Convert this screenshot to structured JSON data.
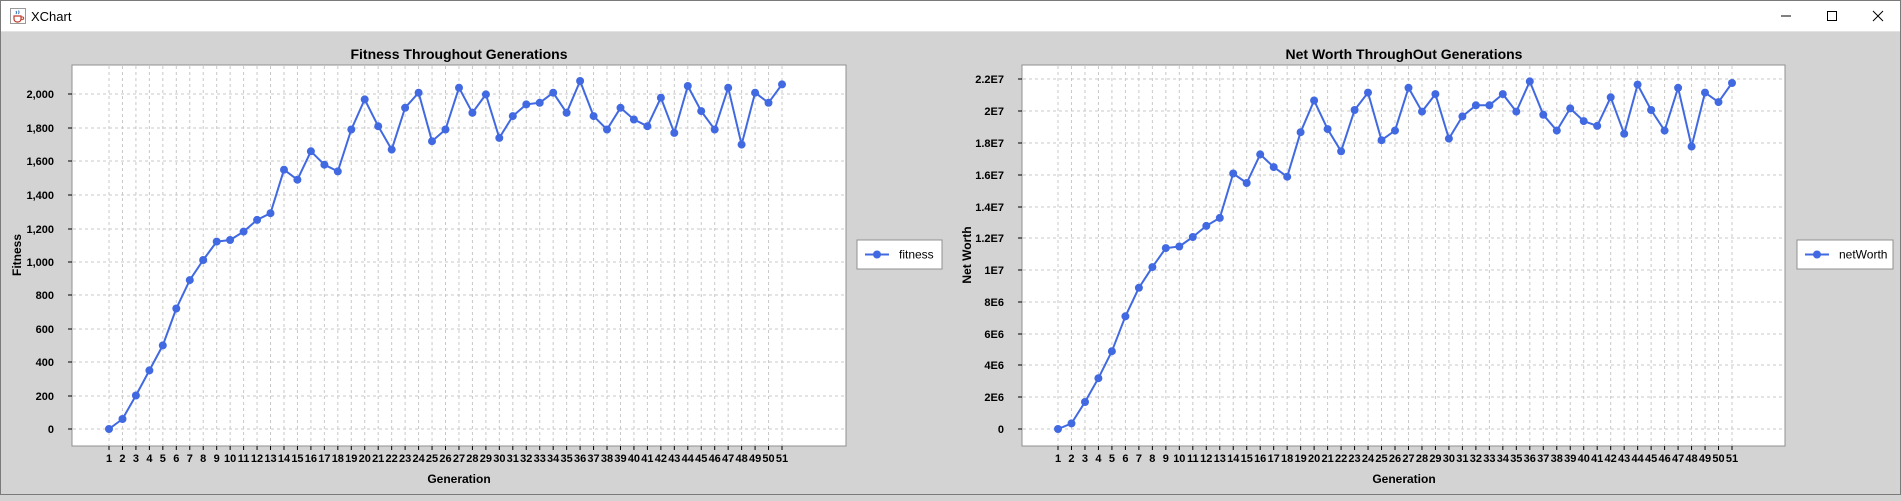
{
  "window": {
    "title": "XChart",
    "app_icon": "java-cup-icon",
    "controls": [
      "minimize-icon",
      "maximize-icon",
      "close-icon"
    ]
  },
  "colors": {
    "series": "#4169e1",
    "plot_background": "#ffffff",
    "chart_background": "#d3d3d3",
    "grid": "#c8c8c8"
  },
  "chart_data": [
    {
      "type": "line",
      "title": "Fitness Throughout Generations",
      "xlabel": "Generation",
      "ylabel": "Fitness",
      "categories": [
        "1",
        "2",
        "3",
        "4",
        "5",
        "6",
        "7",
        "8",
        "9",
        "10",
        "11",
        "12",
        "13",
        "14",
        "15",
        "16",
        "17",
        "18",
        "19",
        "20",
        "21",
        "22",
        "23",
        "24",
        "25",
        "26",
        "27",
        "28",
        "29",
        "30",
        "31",
        "32",
        "33",
        "34",
        "35",
        "36",
        "37",
        "38",
        "39",
        "40",
        "41",
        "42",
        "43",
        "44",
        "45",
        "46",
        "47",
        "48",
        "49",
        "50",
        "51"
      ],
      "y_ticks": [
        "0",
        "200",
        "400",
        "600",
        "800",
        "1,000",
        "1,200",
        "1,400",
        "1,600",
        "1,800",
        "2,000"
      ],
      "ylim": [
        -80,
        2170
      ],
      "grid": true,
      "legend": "right",
      "series": [
        {
          "name": "fitness",
          "values": [
            0,
            60,
            200,
            350,
            500,
            720,
            890,
            1010,
            1120,
            1130,
            1180,
            1250,
            1290,
            1550,
            1490,
            1660,
            1580,
            1540,
            1790,
            1970,
            1810,
            1670,
            1920,
            2010,
            1720,
            1790,
            2040,
            1890,
            2000,
            1740,
            1870,
            1940,
            1950,
            2010,
            1890,
            2080,
            1870,
            1790,
            1920,
            1850,
            1810,
            1980,
            1770,
            2050,
            1900,
            1790,
            2040,
            1700,
            2010,
            1950,
            2060
          ]
        }
      ]
    },
    {
      "type": "line",
      "title": "Net Worth ThroughOut Generations",
      "xlabel": "Generation",
      "ylabel": "Net Worth",
      "categories": [
        "1",
        "2",
        "3",
        "4",
        "5",
        "6",
        "7",
        "8",
        "9",
        "10",
        "11",
        "12",
        "13",
        "14",
        "15",
        "16",
        "17",
        "18",
        "19",
        "20",
        "21",
        "22",
        "23",
        "24",
        "25",
        "26",
        "27",
        "28",
        "29",
        "30",
        "31",
        "32",
        "33",
        "34",
        "35",
        "36",
        "37",
        "38",
        "39",
        "40",
        "41",
        "42",
        "43",
        "44",
        "45",
        "46",
        "47",
        "48",
        "49",
        "50",
        "51"
      ],
      "y_ticks": [
        "0",
        "2E6",
        "4E6",
        "6E6",
        "8E6",
        "1E7",
        "1.2E7",
        "1.4E7",
        "1.6E7",
        "1.8E7",
        "2E7",
        "2.2E7"
      ],
      "ylim": [
        -800000,
        22950000
      ],
      "grid": true,
      "legend": "right",
      "series": [
        {
          "name": "netWorth",
          "values": [
            0,
            350000,
            1700000,
            3200000,
            4900000,
            7100000,
            8900000,
            10200000,
            11400000,
            11500000,
            12100000,
            12800000,
            13300000,
            16100000,
            15500000,
            17300000,
            16500000,
            15900000,
            18700000,
            20700000,
            18900000,
            17500000,
            20100000,
            21200000,
            18200000,
            18800000,
            21500000,
            20000000,
            21100000,
            18300000,
            19700000,
            20400000,
            20400000,
            21100000,
            20000000,
            21900000,
            19800000,
            18800000,
            20200000,
            19400000,
            19100000,
            20900000,
            18600000,
            21700000,
            20100000,
            18800000,
            21500000,
            17800000,
            21200000,
            20600000,
            21800000
          ]
        }
      ]
    }
  ]
}
